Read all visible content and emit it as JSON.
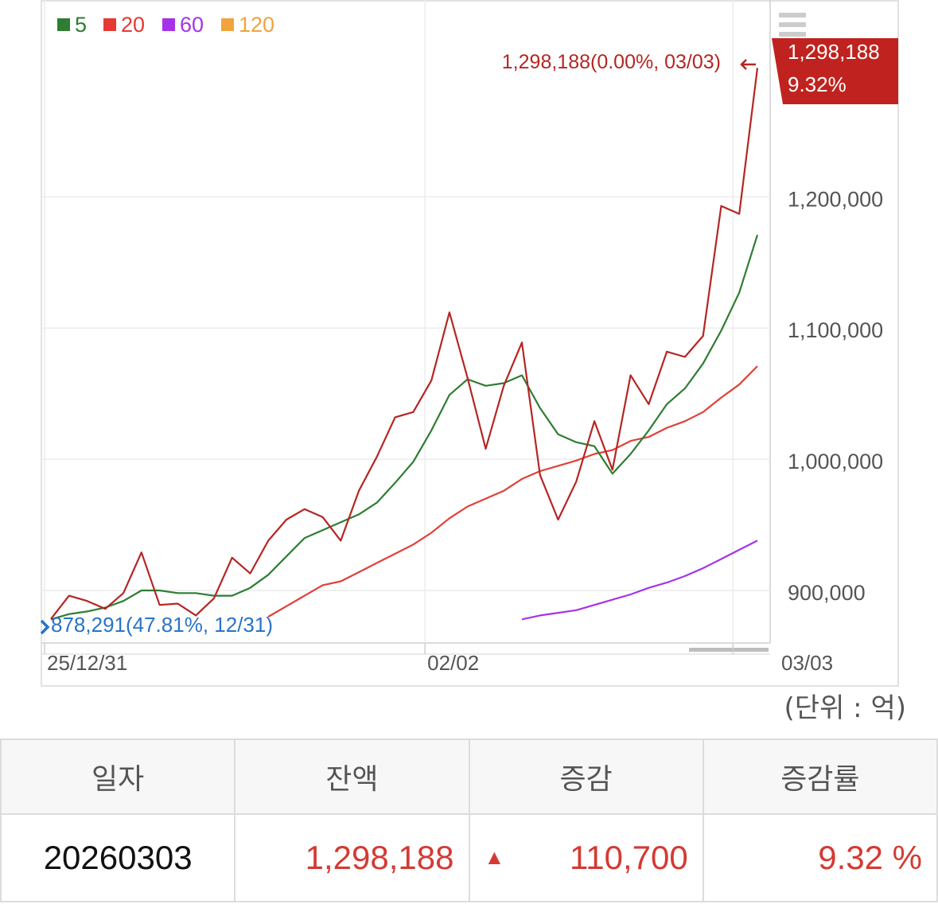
{
  "legend": [
    {
      "label": "5",
      "color": "#2e7d32"
    },
    {
      "label": "20",
      "color": "#e53935"
    },
    {
      "label": "60",
      "color": "#a633e8"
    },
    {
      "label": "120",
      "color": "#f2a33c"
    }
  ],
  "menu_icon": "hamburger-menu-icon",
  "colors": {
    "price": "#b52622",
    "ma5": "#2e7d32",
    "ma20": "#e04038",
    "ma60": "#a633e8",
    "current_tag_bg": "#c0231f",
    "min_label": "#2a73c7",
    "up": "#d43a33"
  },
  "annotations": {
    "max_label": "1,298,188(0.00%, 03/03)",
    "min_label": "878,291(47.81%, 12/31)",
    "current_value": "1,298,188",
    "current_change": "9.32%"
  },
  "unit_label": "(단위 : 억)",
  "table": {
    "headers": [
      "일자",
      "잔액",
      "증감",
      "증감률"
    ],
    "row": {
      "date": "20260303",
      "balance": "1,298,188",
      "change_icon": "up-triangle-icon",
      "change_symbol": "▲",
      "change": "110,700",
      "rate": "9.32 %"
    }
  },
  "chart_data": {
    "type": "line",
    "x_tick_labels": [
      "25/12/31",
      "02/02",
      "03/03"
    ],
    "x_tick_index": [
      0,
      21,
      38
    ],
    "y_ticks": [
      900000,
      1000000,
      1100000,
      1200000
    ],
    "y_tick_labels": [
      "900,000",
      "1,000,000",
      "1,100,000",
      "1,200,000"
    ],
    "ylim": [
      860000,
      1350000
    ],
    "grid": true,
    "legend_position": "top-left",
    "series": [
      {
        "name": "price",
        "color": "#b52622",
        "start": 0,
        "values": [
          878291,
          896000,
          892000,
          886000,
          898000,
          929000,
          889000,
          890000,
          881000,
          894000,
          925000,
          913000,
          938000,
          954000,
          962000,
          956000,
          938000,
          976000,
          1002000,
          1032000,
          1036000,
          1060000,
          1112000,
          1062000,
          1008000,
          1056000,
          1089000,
          988000,
          954000,
          983000,
          1029000,
          992000,
          1064000,
          1042000,
          1082000,
          1078000,
          1094000,
          1193000,
          1187000,
          1298188
        ]
      },
      {
        "name": "5",
        "color": "#2e7d32",
        "start": 0,
        "values": [
          878000,
          882000,
          884000,
          887000,
          892000,
          900000,
          900000,
          898000,
          898000,
          896000,
          896000,
          902000,
          912000,
          926000,
          940000,
          946000,
          952000,
          958000,
          967000,
          982000,
          998000,
          1022000,
          1049000,
          1061000,
          1056000,
          1058000,
          1064000,
          1039000,
          1019000,
          1013000,
          1010000,
          989000,
          1004000,
          1022000,
          1042000,
          1054000,
          1073000,
          1098000,
          1127000,
          1171000
        ]
      },
      {
        "name": "20",
        "color": "#e04038",
        "start": 12,
        "values": [
          880000,
          888000,
          896000,
          904000,
          907000,
          914000,
          921000,
          928000,
          935000,
          944000,
          955000,
          964000,
          970000,
          976000,
          985000,
          991000,
          995000,
          999000,
          1004000,
          1007000,
          1014000,
          1017000,
          1024000,
          1029000,
          1036000,
          1047000,
          1057000,
          1071000
        ]
      },
      {
        "name": "60",
        "color": "#a633e8",
        "start": 26,
        "values": [
          878000,
          881000,
          883000,
          885000,
          889000,
          893000,
          897000,
          902000,
          906000,
          911000,
          917000,
          924000,
          931000,
          938000
        ]
      }
    ]
  }
}
